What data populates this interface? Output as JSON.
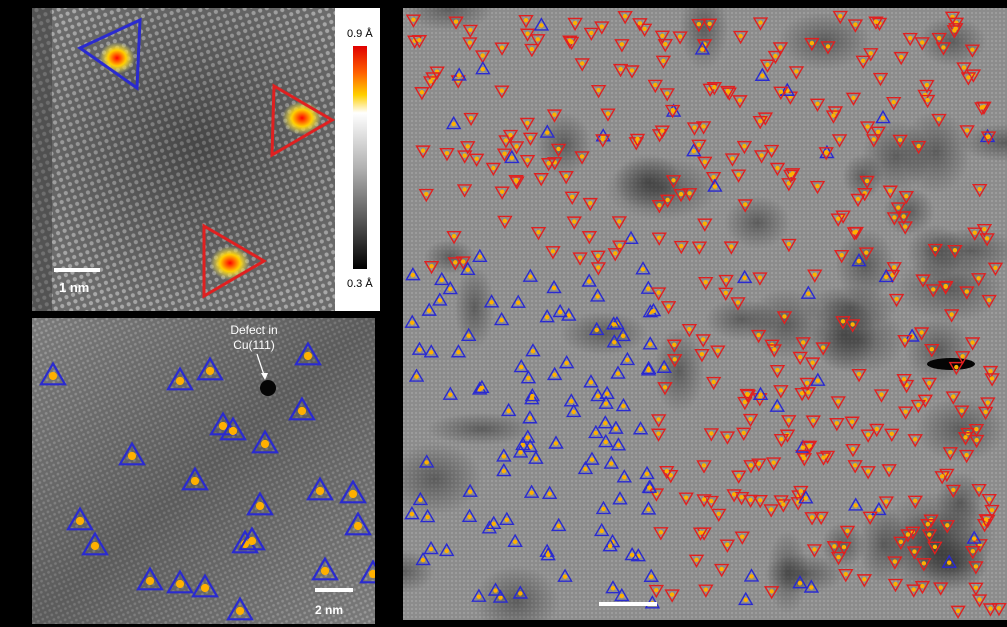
{
  "panel_a": {
    "scale_bar_label": "1 nm",
    "colorbar": {
      "max_label": "0.9 Å",
      "min_label": "0.3 Å"
    }
  },
  "panel_b": {
    "defect_label_line1": "Defect in",
    "defect_label_line2": "Cu(111)",
    "scale_bar_label": "2 nm"
  },
  "colors": {
    "up_triangle": "#2a2ad0",
    "down_triangle": "#e02020",
    "background": "#000000"
  }
}
